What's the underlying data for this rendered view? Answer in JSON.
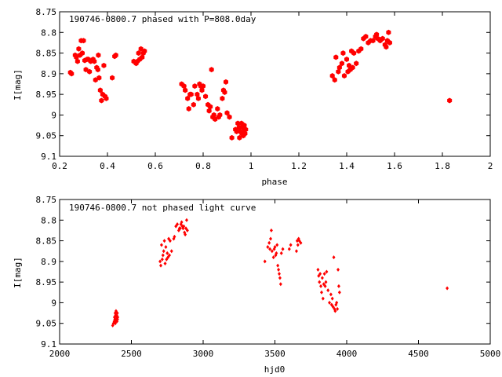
{
  "colors": {
    "marker": "#ff0000",
    "axis": "#000000",
    "background": "#ffffff"
  },
  "chart_data": [
    {
      "type": "scatter",
      "title": "190746-0800.7 phased with P=808.0day",
      "xlabel": "phase",
      "ylabel": "I[mag]",
      "xlim": [
        0.2,
        2
      ],
      "ylim": [
        8.75,
        9.1
      ],
      "y_inverted": true,
      "grid": false,
      "marker": "filled-hexagon",
      "xticks": [
        "0.2",
        "0.4",
        "0.6",
        "0.8",
        "1",
        "1.2",
        "1.4",
        "1.6",
        "1.8",
        "2"
      ],
      "yticks": [
        "8.75",
        "8.8",
        "8.85",
        "8.9",
        "8.95",
        "9",
        "9.05",
        "9.1"
      ],
      "series": [
        {
          "points": [
            [
              0.245,
              8.897
            ],
            [
              0.25,
              8.9
            ],
            [
              0.265,
              8.855
            ],
            [
              0.27,
              8.86
            ],
            [
              0.275,
              8.87
            ],
            [
              0.28,
              8.84
            ],
            [
              0.285,
              8.855
            ],
            [
              0.29,
              8.82
            ],
            [
              0.295,
              8.85
            ],
            [
              0.3,
              8.82
            ],
            [
              0.305,
              8.868
            ],
            [
              0.31,
              8.89
            ],
            [
              0.315,
              8.865
            ],
            [
              0.32,
              8.865
            ],
            [
              0.325,
              8.895
            ],
            [
              0.33,
              8.87
            ],
            [
              0.34,
              8.865
            ],
            [
              0.345,
              8.87
            ],
            [
              0.35,
              8.915
            ],
            [
              0.355,
              8.885
            ],
            [
              0.36,
              8.89
            ],
            [
              0.362,
              8.855
            ],
            [
              0.365,
              8.91
            ],
            [
              0.37,
              8.94
            ],
            [
              0.375,
              8.965
            ],
            [
              0.38,
              8.95
            ],
            [
              0.385,
              8.88
            ],
            [
              0.39,
              8.955
            ],
            [
              0.395,
              8.96
            ],
            [
              0.42,
              8.91
            ],
            [
              0.43,
              8.858
            ],
            [
              0.435,
              8.855
            ],
            [
              0.51,
              8.87
            ],
            [
              0.52,
              8.875
            ],
            [
              0.525,
              8.87
            ],
            [
              0.53,
              8.85
            ],
            [
              0.535,
              8.865
            ],
            [
              0.54,
              8.84
            ],
            [
              0.545,
              8.86
            ],
            [
              0.55,
              8.85
            ],
            [
              0.555,
              8.845
            ],
            [
              0.71,
              8.925
            ],
            [
              0.72,
              8.93
            ],
            [
              0.725,
              8.94
            ],
            [
              0.735,
              8.96
            ],
            [
              0.74,
              8.985
            ],
            [
              0.745,
              8.95
            ],
            [
              0.75,
              8.95
            ],
            [
              0.76,
              8.975
            ],
            [
              0.765,
              8.93
            ],
            [
              0.775,
              8.95
            ],
            [
              0.78,
              8.96
            ],
            [
              0.785,
              8.925
            ],
            [
              0.79,
              8.93
            ],
            [
              0.795,
              8.94
            ],
            [
              0.8,
              8.93
            ],
            [
              0.81,
              8.955
            ],
            [
              0.82,
              8.975
            ],
            [
              0.825,
              8.99
            ],
            [
              0.83,
              8.98
            ],
            [
              0.835,
              8.89
            ],
            [
              0.84,
              9.005
            ],
            [
              0.845,
              9.0
            ],
            [
              0.85,
              9.01
            ],
            [
              0.86,
              8.985
            ],
            [
              0.865,
              9.005
            ],
            [
              0.87,
              9.0
            ],
            [
              0.88,
              8.96
            ],
            [
              0.885,
              8.94
            ],
            [
              0.89,
              8.945
            ],
            [
              0.895,
              8.92
            ],
            [
              0.9,
              8.995
            ],
            [
              0.91,
              9.005
            ],
            [
              0.92,
              9.055
            ],
            [
              0.935,
              9.035
            ],
            [
              0.94,
              9.04
            ],
            [
              0.945,
              9.02
            ],
            [
              0.95,
              9.03
            ],
            [
              0.952,
              9.055
            ],
            [
              0.955,
              9.04
            ],
            [
              0.96,
              9.02
            ],
            [
              0.962,
              9.045
            ],
            [
              0.965,
              9.03
            ],
            [
              0.968,
              9.05
            ],
            [
              0.97,
              9.04
            ],
            [
              0.972,
              9.025
            ],
            [
              0.975,
              9.045
            ],
            [
              0.978,
              9.035
            ],
            [
              1.34,
              8.905
            ],
            [
              1.35,
              8.915
            ],
            [
              1.355,
              8.86
            ],
            [
              1.365,
              8.895
            ],
            [
              1.37,
              8.885
            ],
            [
              1.38,
              8.875
            ],
            [
              1.385,
              8.85
            ],
            [
              1.39,
              8.905
            ],
            [
              1.4,
              8.865
            ],
            [
              1.405,
              8.895
            ],
            [
              1.41,
              8.88
            ],
            [
              1.415,
              8.89
            ],
            [
              1.42,
              8.845
            ],
            [
              1.425,
              8.885
            ],
            [
              1.43,
              8.85
            ],
            [
              1.44,
              8.875
            ],
            [
              1.45,
              8.845
            ],
            [
              1.46,
              8.84
            ],
            [
              1.47,
              8.815
            ],
            [
              1.48,
              8.81
            ],
            [
              1.49,
              8.825
            ],
            [
              1.5,
              8.82
            ],
            [
              1.51,
              8.82
            ],
            [
              1.52,
              8.81
            ],
            [
              1.525,
              8.805
            ],
            [
              1.53,
              8.815
            ],
            [
              1.54,
              8.82
            ],
            [
              1.55,
              8.815
            ],
            [
              1.56,
              8.83
            ],
            [
              1.565,
              8.835
            ],
            [
              1.57,
              8.82
            ],
            [
              1.575,
              8.8
            ],
            [
              1.58,
              8.825
            ],
            [
              1.83,
              8.965
            ]
          ]
        }
      ]
    },
    {
      "type": "scatter",
      "title": "190746-0800.7 not phased light curve",
      "xlabel": "hjd0",
      "ylabel": "I[mag]",
      "xlim": [
        2000,
        5000
      ],
      "ylim": [
        8.75,
        9.1
      ],
      "y_inverted": true,
      "grid": false,
      "marker": "small-diamond",
      "xticks": [
        "2000",
        "2500",
        "3000",
        "3500",
        "4000",
        "4500",
        "5000"
      ],
      "yticks": [
        "8.75",
        "8.8",
        "8.85",
        "8.9",
        "8.95",
        "9",
        "9.05",
        "9.1"
      ],
      "series": [
        {
          "points": [
            [
              2370,
              9.055
            ],
            [
              2375,
              9.05
            ],
            [
              2380,
              9.045
            ],
            [
              2382,
              9.035
            ],
            [
              2385,
              9.04
            ],
            [
              2387,
              9.025
            ],
            [
              2388,
              9.05
            ],
            [
              2390,
              9.03
            ],
            [
              2392,
              9.045
            ],
            [
              2393,
              9.02
            ],
            [
              2395,
              9.04
            ],
            [
              2397,
              9.035
            ],
            [
              2398,
              9.03
            ],
            [
              2400,
              9.045
            ],
            [
              2402,
              9.025
            ],
            [
              2403,
              9.04
            ],
            [
              2405,
              9.035
            ],
            [
              2700,
              8.9
            ],
            [
              2705,
              8.91
            ],
            [
              2710,
              8.86
            ],
            [
              2715,
              8.895
            ],
            [
              2720,
              8.885
            ],
            [
              2725,
              8.875
            ],
            [
              2730,
              8.85
            ],
            [
              2735,
              8.905
            ],
            [
              2740,
              8.865
            ],
            [
              2745,
              8.895
            ],
            [
              2750,
              8.88
            ],
            [
              2755,
              8.89
            ],
            [
              2760,
              8.845
            ],
            [
              2765,
              8.885
            ],
            [
              2770,
              8.85
            ],
            [
              2780,
              8.875
            ],
            [
              2795,
              8.845
            ],
            [
              2800,
              8.84
            ],
            [
              2810,
              8.815
            ],
            [
              2820,
              8.81
            ],
            [
              2830,
              8.825
            ],
            [
              2835,
              8.82
            ],
            [
              2840,
              8.82
            ],
            [
              2845,
              8.81
            ],
            [
              2850,
              8.805
            ],
            [
              2855,
              8.815
            ],
            [
              2860,
              8.82
            ],
            [
              2865,
              8.815
            ],
            [
              2870,
              8.83
            ],
            [
              2875,
              8.835
            ],
            [
              2880,
              8.82
            ],
            [
              2885,
              8.8
            ],
            [
              2890,
              8.825
            ],
            [
              3430,
              8.9
            ],
            [
              3450,
              8.865
            ],
            [
              3460,
              8.855
            ],
            [
              3465,
              8.87
            ],
            [
              3470,
              8.845
            ],
            [
              3475,
              8.825
            ],
            [
              3480,
              8.875
            ],
            [
              3490,
              8.89
            ],
            [
              3495,
              8.87
            ],
            [
              3500,
              8.865
            ],
            [
              3505,
              8.885
            ],
            [
              3510,
              8.88
            ],
            [
              3515,
              8.86
            ],
            [
              3520,
              8.91
            ],
            [
              3525,
              8.92
            ],
            [
              3530,
              8.93
            ],
            [
              3535,
              8.94
            ],
            [
              3540,
              8.955
            ],
            [
              3545,
              8.88
            ],
            [
              3555,
              8.87
            ],
            [
              3600,
              8.87
            ],
            [
              3610,
              8.86
            ],
            [
              3650,
              8.875
            ],
            [
              3655,
              8.85
            ],
            [
              3660,
              8.86
            ],
            [
              3665,
              8.845
            ],
            [
              3670,
              8.85
            ],
            [
              3680,
              8.855
            ],
            [
              3800,
              8.92
            ],
            [
              3805,
              8.935
            ],
            [
              3810,
              8.95
            ],
            [
              3815,
              8.93
            ],
            [
              3820,
              8.96
            ],
            [
              3825,
              8.975
            ],
            [
              3830,
              8.94
            ],
            [
              3835,
              8.99
            ],
            [
              3840,
              8.955
            ],
            [
              3845,
              8.93
            ],
            [
              3850,
              8.96
            ],
            [
              3855,
              8.95
            ],
            [
              3860,
              8.925
            ],
            [
              3870,
              8.97
            ],
            [
              3880,
              9.0
            ],
            [
              3890,
              8.98
            ],
            [
              3895,
              9.005
            ],
            [
              3900,
              8.99
            ],
            [
              3905,
              9.01
            ],
            [
              3910,
              8.89
            ],
            [
              3915,
              9.015
            ],
            [
              3920,
              9.02
            ],
            [
              3925,
              9.005
            ],
            [
              3930,
              9.0
            ],
            [
              3935,
              9.015
            ],
            [
              3940,
              8.92
            ],
            [
              3945,
              8.96
            ],
            [
              3950,
              8.975
            ],
            [
              4700,
              8.965
            ]
          ]
        }
      ]
    }
  ]
}
